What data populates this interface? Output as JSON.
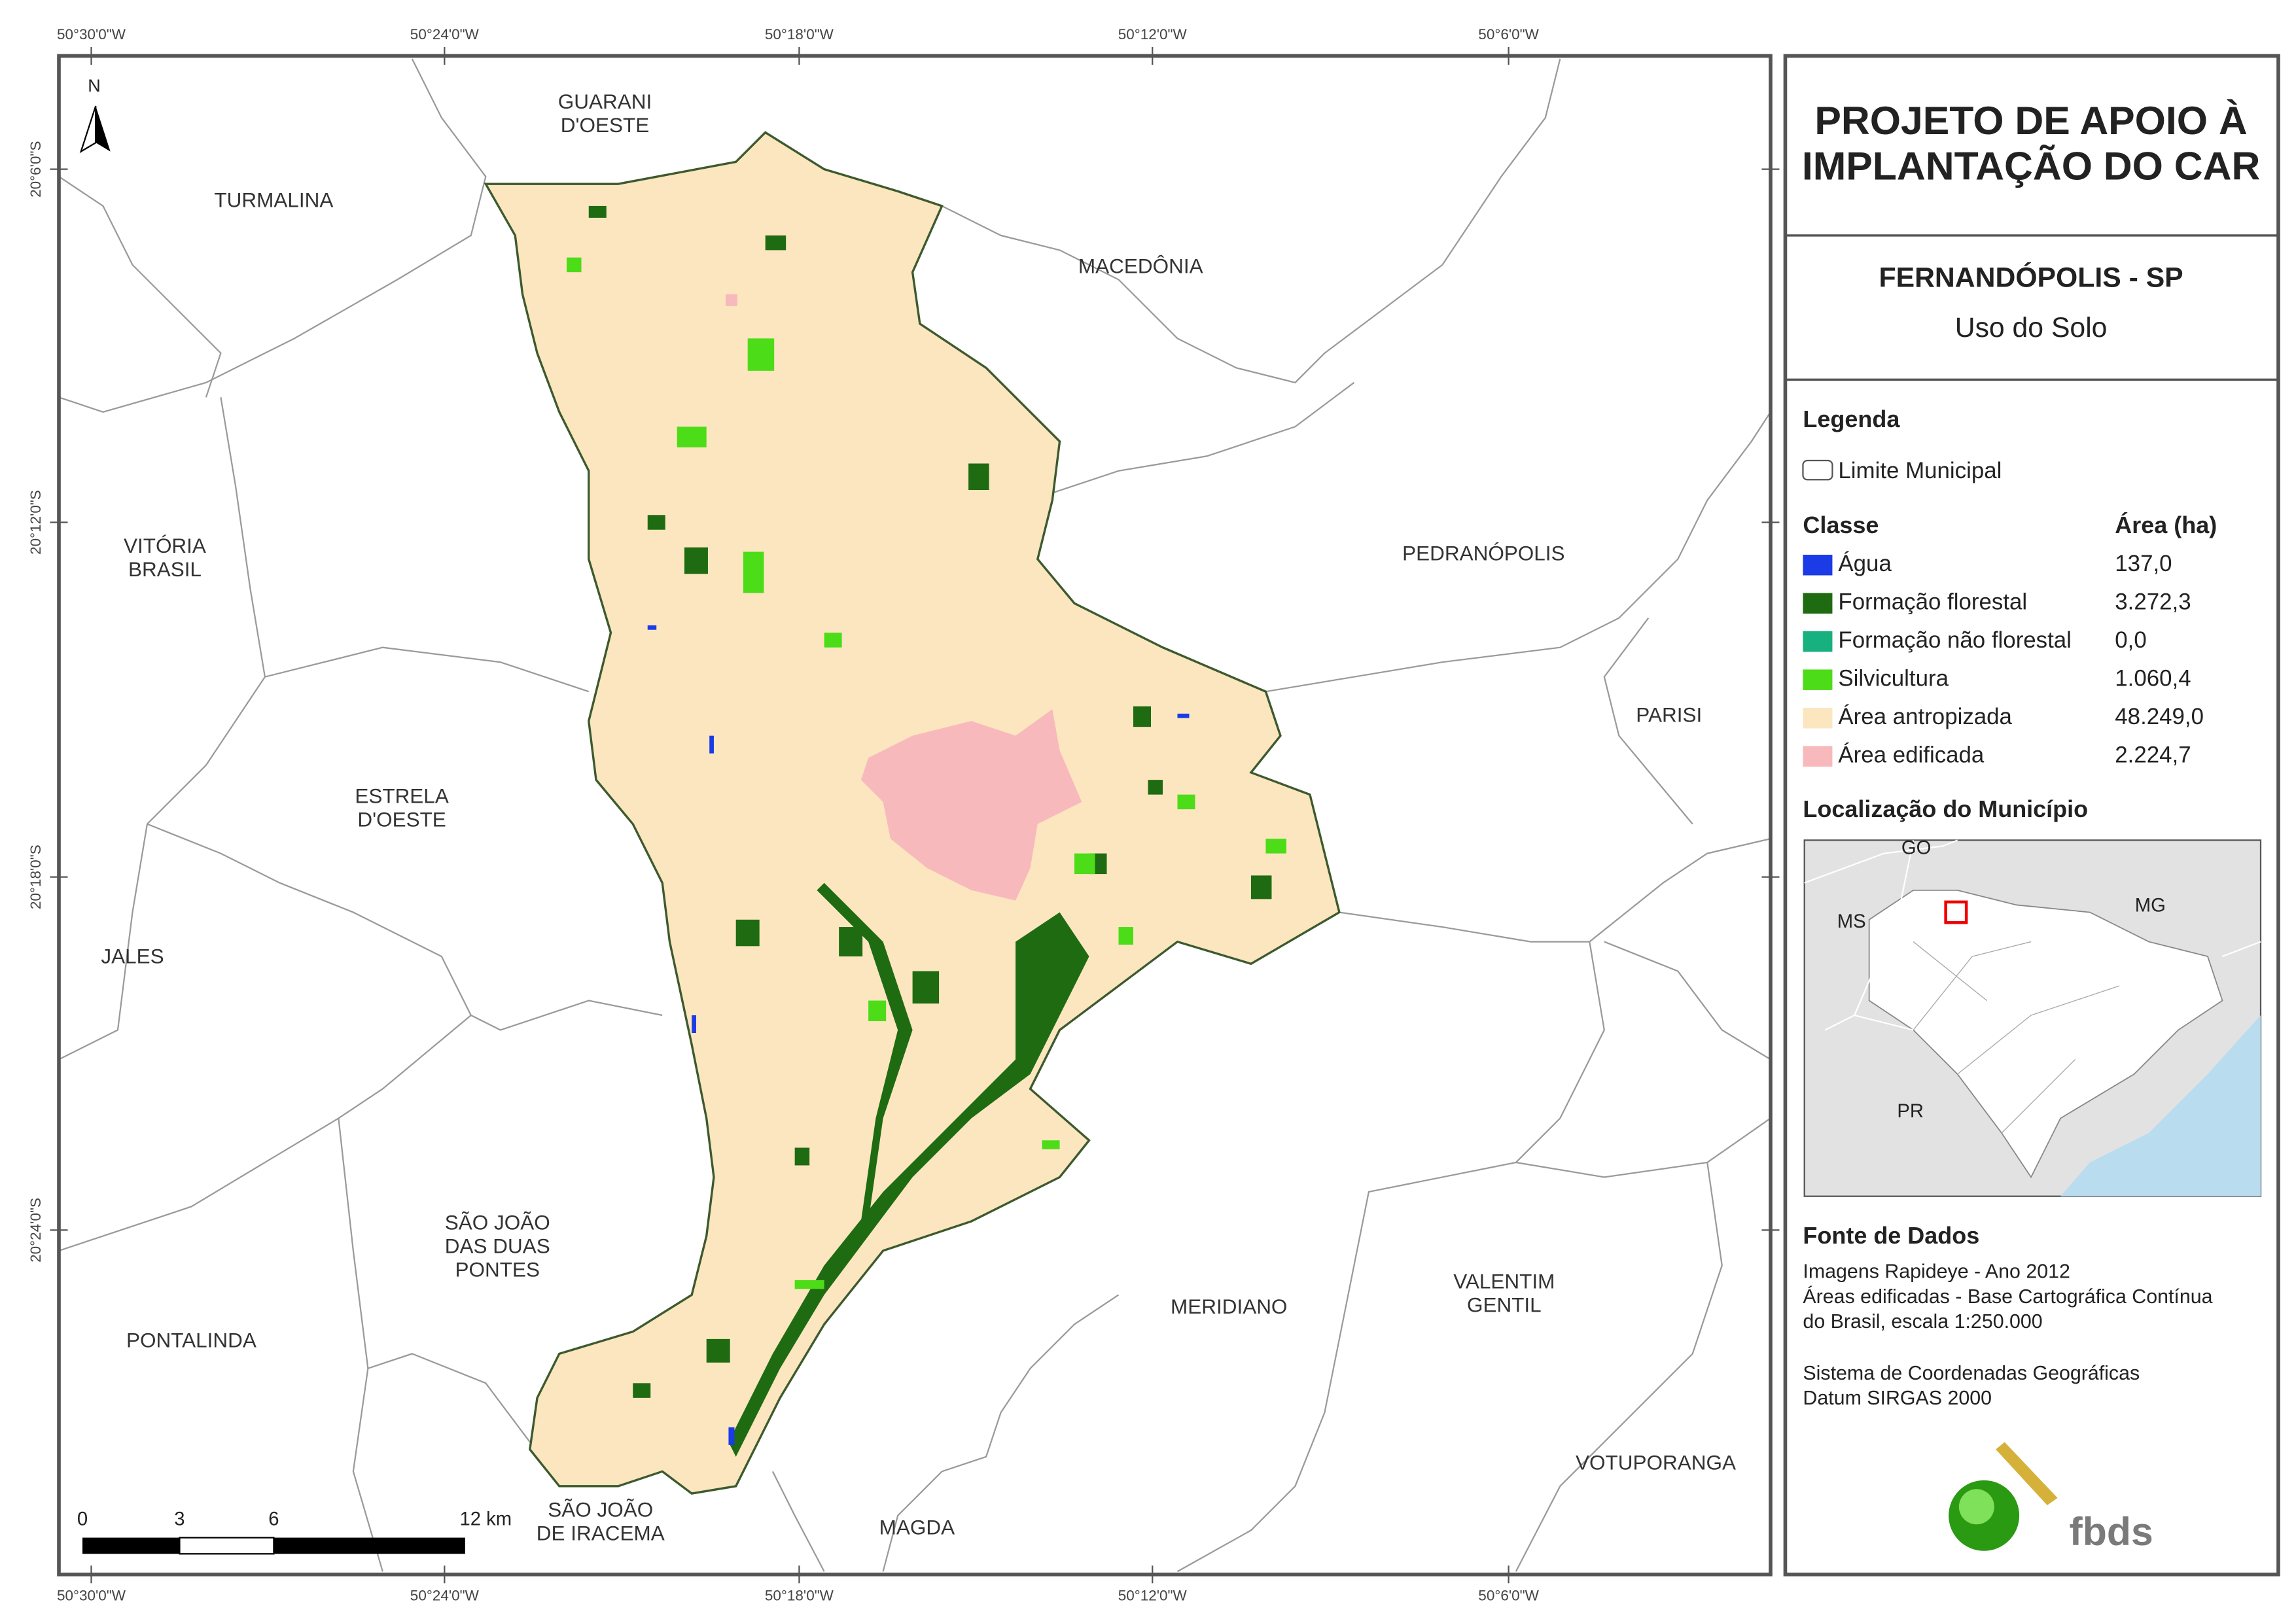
{
  "map": {
    "north": "N",
    "coordinates": {
      "top": [
        "50°30'0\"W",
        "50°24'0\"W",
        "50°18'0\"W",
        "50°12'0\"W",
        "50°6'0\"W"
      ],
      "left": [
        "20°6'0\"S",
        "20°12'0\"S",
        "20°18'0\"S",
        "20°24'0\"S"
      ]
    },
    "neighbors": [
      {
        "lines": [
          "GUARANI",
          "D'OESTE"
        ]
      },
      {
        "lines": [
          "TURMALINA"
        ]
      },
      {
        "lines": [
          "MACEDÔNIA"
        ]
      },
      {
        "lines": [
          "VITÓRIA",
          "BRASIL"
        ]
      },
      {
        "lines": [
          "PEDRANÓPOLIS"
        ]
      },
      {
        "lines": [
          "PARISI"
        ]
      },
      {
        "lines": [
          "ESTRELA",
          "D'OESTE"
        ]
      },
      {
        "lines": [
          "JALES"
        ]
      },
      {
        "lines": [
          "SÃO JOÃO",
          "DAS DUAS",
          "PONTES"
        ]
      },
      {
        "lines": [
          "PONTALINDA"
        ]
      },
      {
        "lines": [
          "MERIDIANO"
        ]
      },
      {
        "lines": [
          "VALENTIM",
          "GENTIL"
        ]
      },
      {
        "lines": [
          "VOTUPORANGA"
        ]
      },
      {
        "lines": [
          "SÃO JOÃO",
          "DE IRACEMA"
        ]
      },
      {
        "lines": [
          "MAGDA"
        ]
      }
    ],
    "scale": [
      "0",
      "3",
      "6",
      "12 km"
    ]
  },
  "panel": {
    "title": [
      "PROJETO DE APOIO À",
      "IMPLANTAÇÃO DO CAR"
    ],
    "place": "FERNANDÓPOLIS - SP",
    "theme": "Uso do Solo",
    "legend": {
      "heading": "Legenda",
      "boundary": "Limite Municipal",
      "class_header": "Classe",
      "area_header": "Área (ha)",
      "classes": [
        {
          "name": "Água",
          "area": "137,0",
          "color": "#1a3be6"
        },
        {
          "name": "Formação florestal",
          "area": "3.272,3",
          "color": "#1f6b12"
        },
        {
          "name": "Formação não florestal",
          "area": "0,0",
          "color": "#17b07f"
        },
        {
          "name": "Silvicultura",
          "area": "1.060,4",
          "color": "#4cdc18"
        },
        {
          "name": "Área antropizada",
          "area": "48.249,0",
          "color": "#fbe6bf"
        },
        {
          "name": "Área edificada",
          "area": "2.224,7",
          "color": "#f8b9bd"
        }
      ]
    },
    "location": {
      "heading": "Localização do Município",
      "labels": [
        "GO",
        "MS",
        "MG",
        "PR"
      ]
    },
    "sources": {
      "heading": "Fonte de Dados",
      "lines": [
        "Imagens Rapideye - Ano 2012",
        "Áreas edificadas - Base Cartográfica Contínua",
        "do Brasil, escala 1:250.000",
        "Sistema de Coordenadas Geográficas",
        "Datum SIRGAS 2000"
      ]
    },
    "logo": "fbds"
  }
}
